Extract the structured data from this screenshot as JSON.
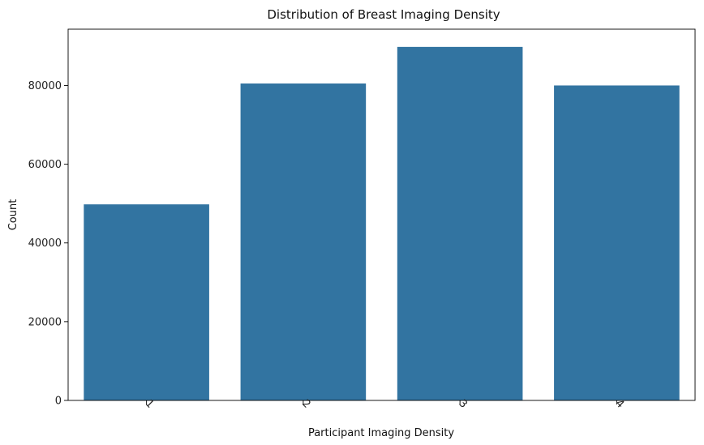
{
  "chart_data": {
    "type": "bar",
    "title": "Distribution of Breast Imaging Density",
    "xlabel": "Participant Imaging Density",
    "ylabel": "Count",
    "categories": [
      "1",
      "2",
      "3",
      "4"
    ],
    "values": [
      49800,
      80500,
      89800,
      80000
    ],
    "ylim": [
      0,
      94300
    ],
    "yticks": [
      0,
      20000,
      40000,
      60000,
      80000
    ],
    "xtick_rotation": 45,
    "grid": false,
    "bar_color": "#3274a1"
  }
}
